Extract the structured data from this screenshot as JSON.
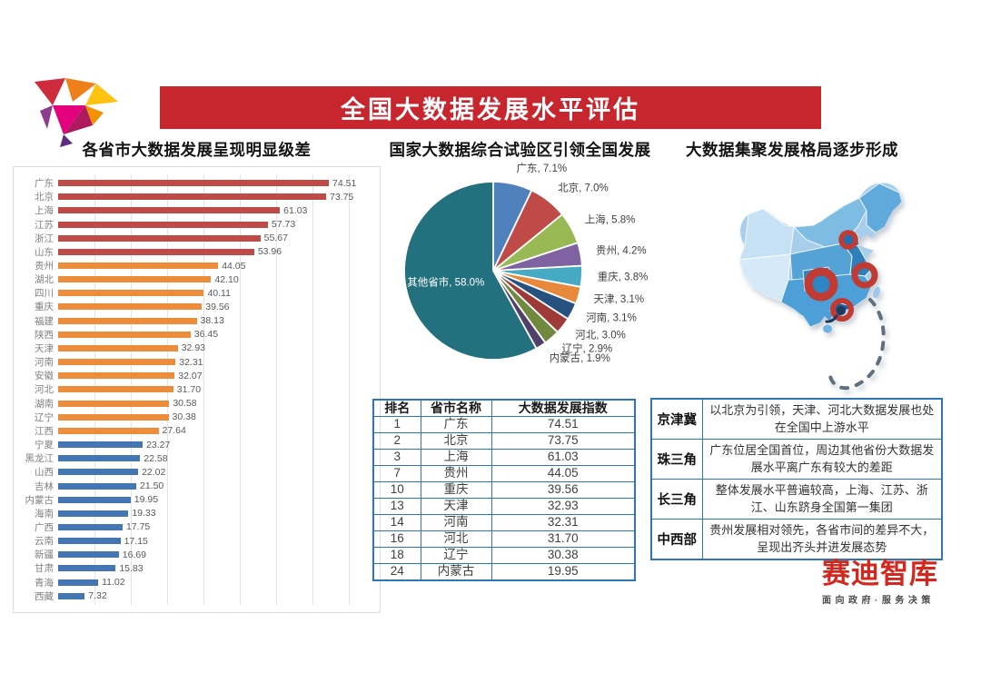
{
  "banner": {
    "title": "全国大数据发展水平评估"
  },
  "sections": {
    "bar_title": "各省市大数据发展呈现明显级差",
    "pie_title": "国家大数据综合试验区引领全国发展",
    "map_title": "大数据集聚发展格局逐步形成"
  },
  "colors": {
    "banner_red": "#C7262E",
    "table_border_blue": "#2E75B6",
    "bar_tier1": "#BE4B48",
    "bar_tier2": "#ED8C3B",
    "bar_tier3": "#4576B4",
    "map_base_blue": "#A7CEEB",
    "map_marker_red": "#C23B33"
  },
  "chart_data": [
    {
      "type": "bar",
      "title": "各省市大数据发展呈现明显级差",
      "orientation": "horizontal",
      "xlim": [
        0,
        85
      ],
      "grid": true,
      "bars": [
        {
          "name": "广东",
          "value": 74.51,
          "display": "74.51",
          "tier": "bar_tier1"
        },
        {
          "name": "北京",
          "value": 73.75,
          "display": "73.75",
          "tier": "bar_tier1"
        },
        {
          "name": "上海",
          "value": 61.03,
          "display": "61.03",
          "tier": "bar_tier1"
        },
        {
          "name": "江苏",
          "value": 57.73,
          "display": "57.73",
          "tier": "bar_tier1"
        },
        {
          "name": "浙江",
          "value": 55.67,
          "display": "55.67",
          "tier": "bar_tier1"
        },
        {
          "name": "山东",
          "value": 53.96,
          "display": "53.96",
          "tier": "bar_tier1"
        },
        {
          "name": "贵州",
          "value": 44.05,
          "display": "44.05",
          "tier": "bar_tier2"
        },
        {
          "name": "湖北",
          "value": 42.1,
          "display": "42.10",
          "tier": "bar_tier2"
        },
        {
          "name": "四川",
          "value": 40.11,
          "display": "40.11",
          "tier": "bar_tier2"
        },
        {
          "name": "重庆",
          "value": 39.56,
          "display": "39.56",
          "tier": "bar_tier2"
        },
        {
          "name": "福建",
          "value": 38.13,
          "display": "38.13",
          "tier": "bar_tier2"
        },
        {
          "name": "陕西",
          "value": 36.45,
          "display": "36.45",
          "tier": "bar_tier2"
        },
        {
          "name": "天津",
          "value": 32.93,
          "display": "32.93",
          "tier": "bar_tier2"
        },
        {
          "name": "河南",
          "value": 32.31,
          "display": "32.31",
          "tier": "bar_tier2"
        },
        {
          "name": "安徽",
          "value": 32.07,
          "display": "32.07",
          "tier": "bar_tier2"
        },
        {
          "name": "河北",
          "value": 31.7,
          "display": "31.70",
          "tier": "bar_tier2"
        },
        {
          "name": "湖南",
          "value": 30.58,
          "display": "30.58",
          "tier": "bar_tier2"
        },
        {
          "name": "辽宁",
          "value": 30.38,
          "display": "30.38",
          "tier": "bar_tier2"
        },
        {
          "name": "江西",
          "value": 27.64,
          "display": "27.64",
          "tier": "bar_tier2"
        },
        {
          "name": "宁夏",
          "value": 23.27,
          "display": "23.27",
          "tier": "bar_tier3"
        },
        {
          "name": "黑龙江",
          "value": 22.58,
          "display": "22.58",
          "tier": "bar_tier3"
        },
        {
          "name": "山西",
          "value": 22.02,
          "display": "22.02",
          "tier": "bar_tier3"
        },
        {
          "name": "吉林",
          "value": 21.5,
          "display": "21.50",
          "tier": "bar_tier3"
        },
        {
          "name": "内蒙古",
          "value": 19.95,
          "display": "19.95",
          "tier": "bar_tier3"
        },
        {
          "name": "海南",
          "value": 19.33,
          "display": "19.33",
          "tier": "bar_tier3"
        },
        {
          "name": "广西",
          "value": 17.75,
          "display": "17.75",
          "tier": "bar_tier3"
        },
        {
          "name": "云南",
          "value": 17.15,
          "display": "17.15",
          "tier": "bar_tier3"
        },
        {
          "name": "新疆",
          "value": 16.69,
          "display": "16.69",
          "tier": "bar_tier3"
        },
        {
          "name": "甘肃",
          "value": 15.83,
          "display": "15.83",
          "tier": "bar_tier3"
        },
        {
          "name": "青海",
          "value": 11.02,
          "display": "11.02",
          "tier": "bar_tier3"
        },
        {
          "name": "西藏",
          "value": 7.32,
          "display": "7.32",
          "tier": "bar_tier3"
        }
      ]
    },
    {
      "type": "pie",
      "title": "国家大数据综合试验区引领全国发展",
      "start": "12-oclock",
      "direction": "clockwise",
      "slices": [
        {
          "label": "广东",
          "value": 7.1,
          "display": "广东, 7.1%",
          "color": "#4F81BD"
        },
        {
          "label": "北京",
          "value": 7.0,
          "display": "北京, 7.0%",
          "color": "#BE4B48"
        },
        {
          "label": "上海",
          "value": 5.8,
          "display": "上海, 5.8%",
          "color": "#98B954"
        },
        {
          "label": "贵州",
          "value": 4.2,
          "display": "贵州, 4.2%",
          "color": "#7E62A1"
        },
        {
          "label": "重庆",
          "value": 3.8,
          "display": "重庆, 3.8%",
          "color": "#46AAC5"
        },
        {
          "label": "天津",
          "value": 3.1,
          "display": "天津, 3.1%",
          "color": "#E8883C"
        },
        {
          "label": "河南",
          "value": 3.1,
          "display": "河南, 3.1%",
          "color": "#27517E"
        },
        {
          "label": "河北",
          "value": 3.0,
          "display": "河北, 3.0%",
          "color": "#9E3B39"
        },
        {
          "label": "辽宁",
          "value": 2.9,
          "display": "辽宁, 2.9%",
          "color": "#71893F"
        },
        {
          "label": "内蒙古",
          "value": 1.9,
          "display": "内蒙古, 1.9%",
          "color": "#514069"
        },
        {
          "label": "其他省市",
          "value": 58.0,
          "display": "其他省市, 58.0%",
          "color": "#23717F"
        }
      ]
    }
  ],
  "rank_table": {
    "headers": [
      "排名",
      "省市名称",
      "大数据发展指数"
    ],
    "rows": [
      [
        "1",
        "广东",
        "74.51"
      ],
      [
        "2",
        "北京",
        "73.75"
      ],
      [
        "3",
        "上海",
        "61.03"
      ],
      [
        "7",
        "贵州",
        "44.05"
      ],
      [
        "10",
        "重庆",
        "39.56"
      ],
      [
        "13",
        "天津",
        "32.93"
      ],
      [
        "14",
        "河南",
        "32.31"
      ],
      [
        "16",
        "河北",
        "31.70"
      ],
      [
        "18",
        "辽宁",
        "30.38"
      ],
      [
        "24",
        "内蒙古",
        "19.95"
      ]
    ]
  },
  "region_table": {
    "rows": [
      {
        "region": "京津冀",
        "desc": "以北京为引领，天津、河北大数据发展也处在全国中上游水平"
      },
      {
        "region": "珠三角",
        "desc": "广东位居全国首位，周边其他省份大数据发展水平离广东有较大的差距"
      },
      {
        "region": "长三角",
        "desc": "整体发展水平普遍较高，上海、江苏、浙江、山东跻身全国第一集团"
      },
      {
        "region": "中西部",
        "desc": "贵州发展相对领先，各省市间的差异不大，呈现出齐头并进发展态势"
      }
    ]
  },
  "brand": {
    "name": "赛迪智库",
    "slogan": "面向政府·服务决策"
  }
}
